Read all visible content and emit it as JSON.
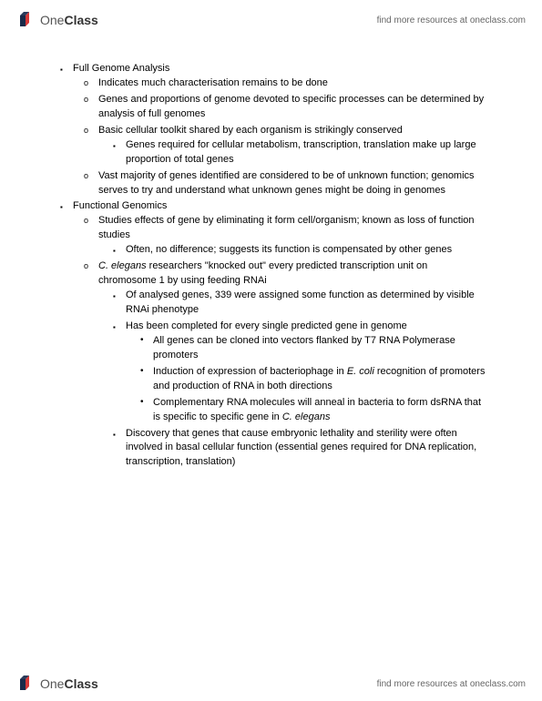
{
  "header": {
    "logo_text_1": "One",
    "logo_text_2": "Class",
    "resource_link": "find more resources at oneclass.com",
    "logo_colors": {
      "navy": "#1a2b4a",
      "red": "#d63838"
    }
  },
  "content": {
    "sections": [
      {
        "title": "Full Genome Analysis",
        "items": [
          {
            "text": "Indicates much characterisation remains to be done",
            "subitems": []
          },
          {
            "text": "Genes and proportions of genome devoted to specific processes can be determined by analysis of full genomes",
            "subitems": []
          },
          {
            "text": "Basic cellular toolkit shared by each organism is strikingly conserved",
            "subitems": [
              {
                "text": "Genes required for cellular metabolism, transcription, translation make up large proportion of total genes",
                "subitems": []
              }
            ]
          },
          {
            "text": "Vast majority of genes identified are considered to be of unknown function; genomics serves to try and understand what unknown genes might be doing in genomes",
            "subitems": []
          }
        ]
      },
      {
        "title": "Functional Genomics",
        "items": [
          {
            "text": "Studies effects of gene by eliminating it form cell/organism; known as loss of function studies",
            "subitems": [
              {
                "text": "Often, no difference; suggests its function is compensated by other genes",
                "subitems": []
              }
            ]
          },
          {
            "text_html": "<span class=\"italic\">C. elegans</span> researchers \"knocked out\" every predicted transcription unit on chromosome 1 by using feeding RNAi",
            "subitems": [
              {
                "text": "Of analysed genes, 339 were assigned some function as determined by visible RNAi phenotype",
                "subitems": []
              },
              {
                "text": "Has been completed for every single predicted gene in genome",
                "subitems": [
                  {
                    "text": "All genes can be cloned into vectors flanked by T7 RNA Polymerase promoters"
                  },
                  {
                    "text_html": "Induction of expression of bacteriophage in <span class=\"italic\">E. coli</span> recognition of promoters and production of RNA in both directions"
                  },
                  {
                    "text_html": "Complementary RNA molecules will anneal in bacteria to form dsRNA that is specific to specific gene in <span class=\"italic\">C. elegans</span>"
                  }
                ]
              },
              {
                "text": "Discovery that genes that cause embryonic lethality and sterility were often involved in basal cellular function (essential genes required for DNA replication, transcription, translation)",
                "subitems": []
              }
            ]
          }
        ]
      }
    ]
  },
  "footer": {
    "logo_text_1": "One",
    "logo_text_2": "Class",
    "resource_link": "find more resources at oneclass.com"
  }
}
